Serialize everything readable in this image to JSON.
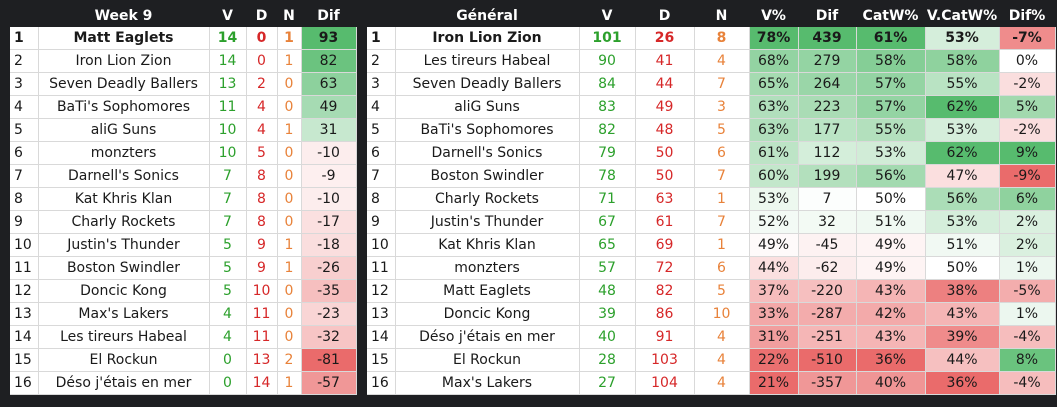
{
  "week": {
    "headers": [
      "Week 9",
      "V",
      "D",
      "N",
      "Dif"
    ],
    "rows": [
      {
        "rank": "1",
        "team": "Matt Eaglets",
        "v": "14",
        "d": "0",
        "n": "1",
        "dif": "93"
      },
      {
        "rank": "2",
        "team": "Iron Lion Zion",
        "v": "14",
        "d": "0",
        "n": "1",
        "dif": "82"
      },
      {
        "rank": "3",
        "team": "Seven Deadly Ballers",
        "v": "13",
        "d": "2",
        "n": "0",
        "dif": "63"
      },
      {
        "rank": "4",
        "team": "BaTi's Sophomores",
        "v": "11",
        "d": "4",
        "n": "0",
        "dif": "49"
      },
      {
        "rank": "5",
        "team": "aliG Suns",
        "v": "10",
        "d": "4",
        "n": "1",
        "dif": "31"
      },
      {
        "rank": "6",
        "team": "monzters",
        "v": "10",
        "d": "5",
        "n": "0",
        "dif": "-10"
      },
      {
        "rank": "7",
        "team": "Darnell's Sonics",
        "v": "7",
        "d": "8",
        "n": "0",
        "dif": "-9"
      },
      {
        "rank": "8",
        "team": "Kat Khris Klan",
        "v": "7",
        "d": "8",
        "n": "0",
        "dif": "-10"
      },
      {
        "rank": "9",
        "team": "Charly Rockets",
        "v": "7",
        "d": "8",
        "n": "0",
        "dif": "-17"
      },
      {
        "rank": "10",
        "team": "Justin's Thunder",
        "v": "5",
        "d": "9",
        "n": "1",
        "dif": "-18"
      },
      {
        "rank": "11",
        "team": "Boston Swindler",
        "v": "5",
        "d": "9",
        "n": "1",
        "dif": "-26"
      },
      {
        "rank": "12",
        "team": "Doncic Kong",
        "v": "5",
        "d": "10",
        "n": "0",
        "dif": "-35"
      },
      {
        "rank": "13",
        "team": "Max's Lakers",
        "v": "4",
        "d": "11",
        "n": "0",
        "dif": "-23"
      },
      {
        "rank": "14",
        "team": "Les tireurs Habeal",
        "v": "4",
        "d": "11",
        "n": "0",
        "dif": "-32"
      },
      {
        "rank": "15",
        "team": "El Rockun",
        "v": "0",
        "d": "13",
        "n": "2",
        "dif": "-81"
      },
      {
        "rank": "16",
        "team": "Déso j'étais en mer",
        "v": "0",
        "d": "14",
        "n": "1",
        "dif": "-57"
      }
    ]
  },
  "general": {
    "headers": [
      "Général",
      "V",
      "D",
      "N",
      "V%",
      "Dif",
      "CatW%",
      "V.CatW%",
      "Dif%"
    ],
    "rows": [
      {
        "rank": "1",
        "team": "Iron Lion Zion",
        "v": "101",
        "d": "26",
        "n": "8",
        "vpct": "78%",
        "dif": "439",
        "catw": "61%",
        "vcatw": "53%",
        "difpct": "-7%"
      },
      {
        "rank": "2",
        "team": "Les tireurs Habeal",
        "v": "90",
        "d": "41",
        "n": "4",
        "vpct": "68%",
        "dif": "279",
        "catw": "58%",
        "vcatw": "58%",
        "difpct": "0%"
      },
      {
        "rank": "3",
        "team": "Seven Deadly Ballers",
        "v": "84",
        "d": "44",
        "n": "7",
        "vpct": "65%",
        "dif": "264",
        "catw": "57%",
        "vcatw": "55%",
        "difpct": "-2%"
      },
      {
        "rank": "4",
        "team": "aliG Suns",
        "v": "83",
        "d": "49",
        "n": "3",
        "vpct": "63%",
        "dif": "223",
        "catw": "57%",
        "vcatw": "62%",
        "difpct": "5%"
      },
      {
        "rank": "5",
        "team": "BaTi's Sophomores",
        "v": "82",
        "d": "48",
        "n": "5",
        "vpct": "63%",
        "dif": "177",
        "catw": "55%",
        "vcatw": "53%",
        "difpct": "-2%"
      },
      {
        "rank": "6",
        "team": "Darnell's Sonics",
        "v": "79",
        "d": "50",
        "n": "6",
        "vpct": "61%",
        "dif": "112",
        "catw": "53%",
        "vcatw": "62%",
        "difpct": "9%"
      },
      {
        "rank": "7",
        "team": "Boston Swindler",
        "v": "78",
        "d": "50",
        "n": "7",
        "vpct": "60%",
        "dif": "199",
        "catw": "56%",
        "vcatw": "47%",
        "difpct": "-9%"
      },
      {
        "rank": "8",
        "team": "Charly Rockets",
        "v": "71",
        "d": "63",
        "n": "1",
        "vpct": "53%",
        "dif": "7",
        "catw": "50%",
        "vcatw": "56%",
        "difpct": "6%"
      },
      {
        "rank": "9",
        "team": "Justin's Thunder",
        "v": "67",
        "d": "61",
        "n": "7",
        "vpct": "52%",
        "dif": "32",
        "catw": "51%",
        "vcatw": "53%",
        "difpct": "2%"
      },
      {
        "rank": "10",
        "team": "Kat Khris Klan",
        "v": "65",
        "d": "69",
        "n": "1",
        "vpct": "49%",
        "dif": "-45",
        "catw": "49%",
        "vcatw": "51%",
        "difpct": "2%"
      },
      {
        "rank": "11",
        "team": "monzters",
        "v": "57",
        "d": "72",
        "n": "6",
        "vpct": "44%",
        "dif": "-62",
        "catw": "49%",
        "vcatw": "50%",
        "difpct": "1%"
      },
      {
        "rank": "12",
        "team": "Matt Eaglets",
        "v": "48",
        "d": "82",
        "n": "5",
        "vpct": "37%",
        "dif": "-220",
        "catw": "43%",
        "vcatw": "38%",
        "difpct": "-5%"
      },
      {
        "rank": "13",
        "team": "Doncic Kong",
        "v": "39",
        "d": "86",
        "n": "10",
        "vpct": "33%",
        "dif": "-287",
        "catw": "42%",
        "vcatw": "43%",
        "difpct": "1%"
      },
      {
        "rank": "14",
        "team": "Déso j'étais en mer",
        "v": "40",
        "d": "91",
        "n": "4",
        "vpct": "31%",
        "dif": "-251",
        "catw": "43%",
        "vcatw": "39%",
        "difpct": "-4%"
      },
      {
        "rank": "15",
        "team": "El Rockun",
        "v": "28",
        "d": "103",
        "n": "4",
        "vpct": "22%",
        "dif": "-510",
        "catw": "36%",
        "vcatw": "44%",
        "difpct": "8%"
      },
      {
        "rank": "16",
        "team": "Max's Lakers",
        "v": "27",
        "d": "104",
        "n": "4",
        "vpct": "21%",
        "dif": "-357",
        "catw": "40%",
        "vcatw": "36%",
        "difpct": "-4%"
      }
    ]
  },
  "colors": {
    "page_bg": "#1e1f22",
    "header_text": "#ffffff",
    "cell_bg": "#ffffff",
    "win_text": "#2ca02c",
    "loss_text": "#d62728",
    "draw_text": "#e8823a",
    "scale_positive": "#57bb6e",
    "scale_negative": "#ea6b6b"
  }
}
